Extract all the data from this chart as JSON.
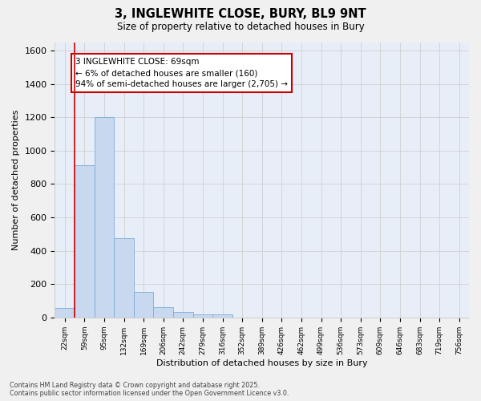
{
  "title_line1": "3, INGLEWHITE CLOSE, BURY, BL9 9NT",
  "title_line2": "Size of property relative to detached houses in Bury",
  "xlabel": "Distribution of detached houses by size in Bury",
  "ylabel": "Number of detached properties",
  "categories": [
    "22sqm",
    "59sqm",
    "95sqm",
    "132sqm",
    "169sqm",
    "206sqm",
    "242sqm",
    "279sqm",
    "316sqm",
    "352sqm",
    "389sqm",
    "426sqm",
    "462sqm",
    "499sqm",
    "536sqm",
    "573sqm",
    "609sqm",
    "646sqm",
    "683sqm",
    "719sqm",
    "756sqm"
  ],
  "values": [
    55,
    910,
    1200,
    475,
    155,
    60,
    35,
    20,
    20,
    0,
    0,
    0,
    0,
    0,
    0,
    0,
    0,
    0,
    0,
    0,
    0
  ],
  "bar_color": "#c8d8ee",
  "bar_edge_color": "#7aadda",
  "bar_edge_width": 0.6,
  "grid_color": "#d0d0d0",
  "bg_color": "#e8eef8",
  "fig_bg_color": "#f0f0f0",
  "annotation_box_color": "#cc0000",
  "red_line_x": 1,
  "annotation_text": "3 INGLEWHITE CLOSE: 69sqm\n← 6% of detached houses are smaller (160)\n94% of semi-detached houses are larger (2,705) →",
  "ylim": [
    0,
    1650
  ],
  "yticks": [
    0,
    200,
    400,
    600,
    800,
    1000,
    1200,
    1400,
    1600
  ],
  "footer_line1": "Contains HM Land Registry data © Crown copyright and database right 2025.",
  "footer_line2": "Contains public sector information licensed under the Open Government Licence v3.0."
}
